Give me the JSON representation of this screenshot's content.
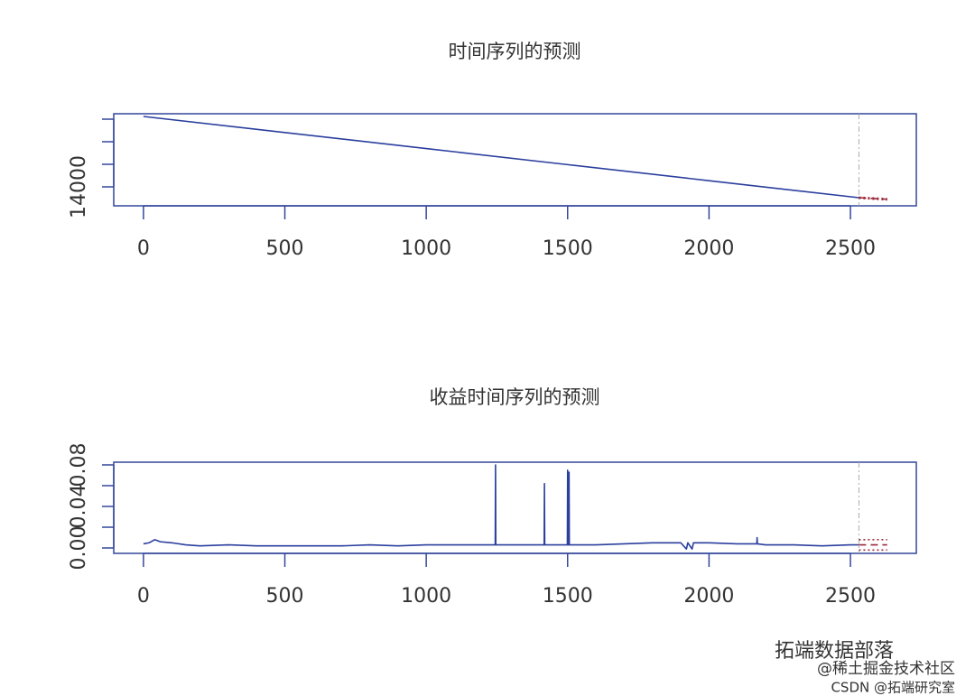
{
  "chart_data": [
    {
      "type": "line",
      "title": "时间序列的预测",
      "xlim": [
        -105,
        2733
      ],
      "xticks": [
        0,
        500,
        1000,
        1500,
        2000,
        2500
      ],
      "ylim": [
        12320,
        20480
      ],
      "yticks": [
        14000,
        {
          "value": 16000,
          "label": null
        },
        {
          "value": 18000,
          "label": null
        },
        {
          "value": 20000,
          "label": null
        }
      ],
      "vline": 2530,
      "series": [
        {
          "color": "#2b3f9e",
          "line_style": "solid",
          "x": [
            0,
            500,
            1000,
            1500,
            2000,
            2530
          ],
          "values": [
            20240,
            18817,
            17394,
            15971,
            14548,
            13040
          ]
        },
        {
          "color": "#9b2a3a",
          "line_style": "dashed",
          "x": [
            2530,
            2630
          ],
          "values": [
            13040,
            12900
          ]
        },
        {
          "color": "#9b2a3a",
          "line_style": "dotted",
          "x": [
            2530,
            2630
          ],
          "values": [
            13090,
            12960
          ]
        },
        {
          "color": "#9b2a3a",
          "line_style": "dotted",
          "x": [
            2530,
            2630
          ],
          "values": [
            12990,
            12840
          ]
        }
      ]
    },
    {
      "type": "line",
      "title": "收益时间序列的预测",
      "xlim": [
        -105,
        2733
      ],
      "xticks": [
        0,
        500,
        1000,
        1500,
        2000,
        2500
      ],
      "ylim": [
        -0.0052,
        0.0826
      ],
      "yticks": [
        {
          "value": 0,
          "label": "0.00"
        },
        {
          "value": 0.02,
          "label": null
        },
        {
          "value": 0.04,
          "label": "0.04"
        },
        {
          "value": 0.06,
          "label": null
        },
        {
          "value": 0.08,
          "label": "0.08"
        }
      ],
      "vline": 2530,
      "series": [
        {
          "color": "#2b3f9e",
          "line_style": "solid",
          "x": [
            0,
            20,
            40,
            60,
            100,
            150,
            200,
            300,
            400,
            500,
            600,
            700,
            800,
            900,
            1000,
            1100,
            1200,
            1244,
            1245,
            1246,
            1300,
            1417,
            1418,
            1419,
            1450,
            1499,
            1500,
            1501,
            1504,
            1505,
            1506,
            1550,
            1600,
            1700,
            1800,
            1900,
            1920,
            1925,
            1940,
            1945,
            2000,
            2100,
            2169,
            2170,
            2171,
            2200,
            2300,
            2400,
            2500,
            2530
          ],
          "values": [
            0.004,
            0.005,
            0.008,
            0.006,
            0.005,
            0.003,
            0.002,
            0.003,
            0.002,
            0.002,
            0.002,
            0.002,
            0.003,
            0.002,
            0.003,
            0.003,
            0.003,
            0.003,
            0.08,
            0.003,
            0.003,
            0.003,
            0.062,
            0.003,
            0.003,
            0.003,
            0.075,
            0.003,
            0.003,
            0.073,
            0.003,
            0.003,
            0.003,
            0.004,
            0.005,
            0.005,
            -0.001,
            0.005,
            -0.001,
            0.005,
            0.005,
            0.004,
            0.004,
            0.01,
            0.004,
            0.003,
            0.003,
            0.002,
            0.003,
            0.003
          ]
        },
        {
          "color": "#9b2a3a",
          "line_style": "dashed",
          "x": [
            2530,
            2630
          ],
          "values": [
            0.003,
            0.003
          ]
        },
        {
          "color": "#9b2a3a",
          "line_style": "dotted",
          "x": [
            2530,
            2630
          ],
          "values": [
            0.008,
            0.008
          ]
        },
        {
          "color": "#9b2a3a",
          "line_style": "dotted",
          "x": [
            2530,
            2630
          ],
          "values": [
            -0.002,
            -0.002
          ]
        }
      ]
    }
  ],
  "watermarks": [
    "拓端数据部落",
    "@稀土掘金技术社区",
    "CSDN @拓端研究室"
  ]
}
